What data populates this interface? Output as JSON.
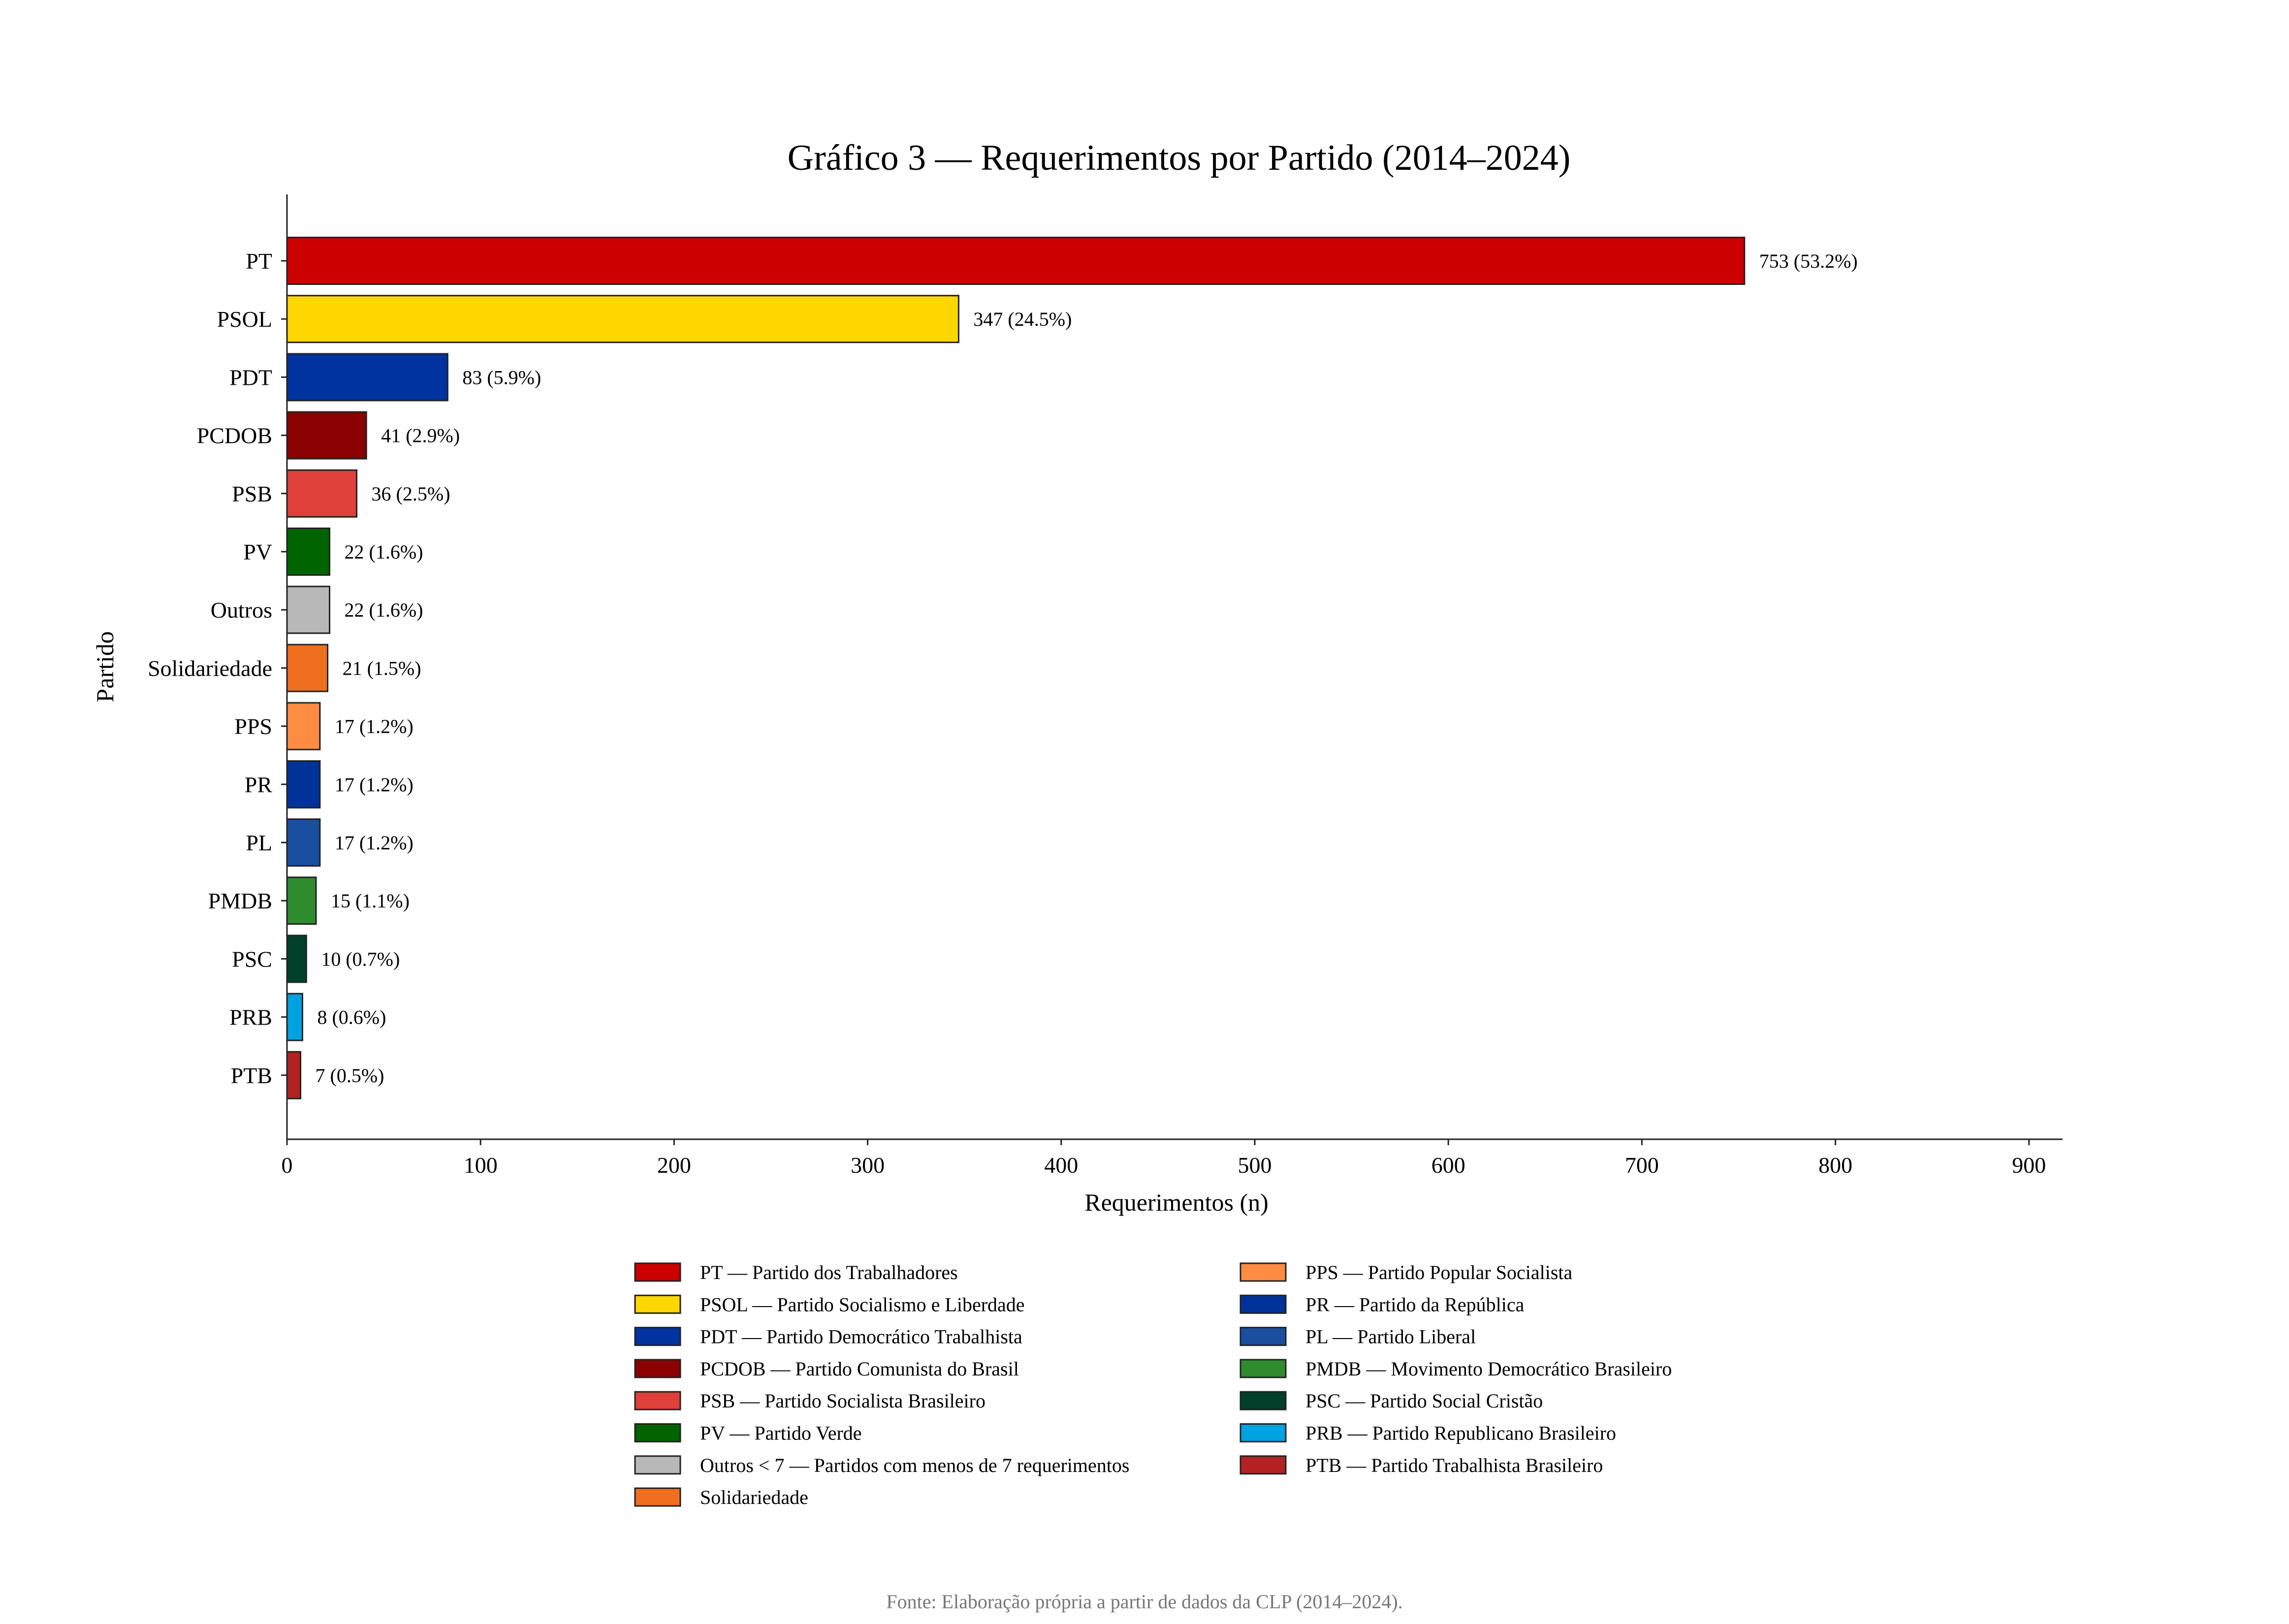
{
  "chart_data": {
    "type": "bar",
    "orientation": "horizontal",
    "title": "Gráfico 3 — Requerimentos por Partido (2014–2024)",
    "xlabel": "Requerimentos (n)",
    "ylabel": "Partido",
    "xlim": [
      0,
      920
    ],
    "x_ticks": [
      "0",
      "100",
      "200",
      "300",
      "400",
      "500",
      "600",
      "700",
      "800",
      "900"
    ],
    "grid": false,
    "legend_placement": "bottom-center",
    "categories": [
      "PT",
      "PSOL",
      "PDT",
      "PCDOB",
      "PSB",
      "PV",
      "Outros",
      "Solidariedade",
      "PPS",
      "PR",
      "PL",
      "PMDB",
      "PSC",
      "PRB",
      "PTB"
    ],
    "values": [
      753,
      347,
      83,
      41,
      36,
      22,
      22,
      21,
      17,
      17,
      17,
      15,
      10,
      8,
      7
    ],
    "data_labels": [
      "753 (53.2%)",
      "347 (24.5%)",
      "83 (5.9%)",
      "41 (2.9%)",
      "36 (2.5%)",
      "22 (1.6%)",
      "22 (1.6%)",
      "21 (1.5%)",
      "17 (1.2%)",
      "17 (1.2%)",
      "17 (1.2%)",
      "15 (1.1%)",
      "10 (0.7%)",
      "8 (0.6%)",
      "7 (0.5%)"
    ],
    "colors": [
      "#cc0000",
      "#ffd700",
      "#0033a0",
      "#8b0000",
      "#e0403a",
      "#006400",
      "#b8b8b8",
      "#f07020",
      "#ff8c42",
      "#003399",
      "#1a4fa0",
      "#2e8b2e",
      "#00402a",
      "#00a2e0",
      "#b22222"
    ],
    "legend": [
      {
        "label": "PT — Partido dos Trabalhadores",
        "color": "#cc0000"
      },
      {
        "label": "PSOL — Partido Socialismo e Liberdade",
        "color": "#ffd700"
      },
      {
        "label": "PDT — Partido Democrático Trabalhista",
        "color": "#0033a0"
      },
      {
        "label": "PCDOB — Partido Comunista do Brasil",
        "color": "#8b0000"
      },
      {
        "label": "PSB — Partido Socialista Brasileiro",
        "color": "#e0403a"
      },
      {
        "label": "PV — Partido Verde",
        "color": "#006400"
      },
      {
        "label": "Outros < 7 — Partidos com menos de 7 requerimentos",
        "color": "#b8b8b8"
      },
      {
        "label": "Solidariedade",
        "color": "#f07020"
      },
      {
        "label": "PPS — Partido Popular Socialista",
        "color": "#ff8c42"
      },
      {
        "label": "PR — Partido da República",
        "color": "#003399"
      },
      {
        "label": "PL — Partido Liberal",
        "color": "#1a4fa0"
      },
      {
        "label": "PMDB — Movimento Democrático Brasileiro",
        "color": "#2e8b2e"
      },
      {
        "label": "PSC — Partido Social Cristão",
        "color": "#00402a"
      },
      {
        "label": "PRB — Partido Republicano Brasileiro",
        "color": "#00a2e0"
      },
      {
        "label": "PTB — Partido Trabalhista Brasileiro",
        "color": "#b22222"
      }
    ],
    "source_note": "Fonte: Elaboração própria a partir de dados da CLP (2014–2024)."
  }
}
